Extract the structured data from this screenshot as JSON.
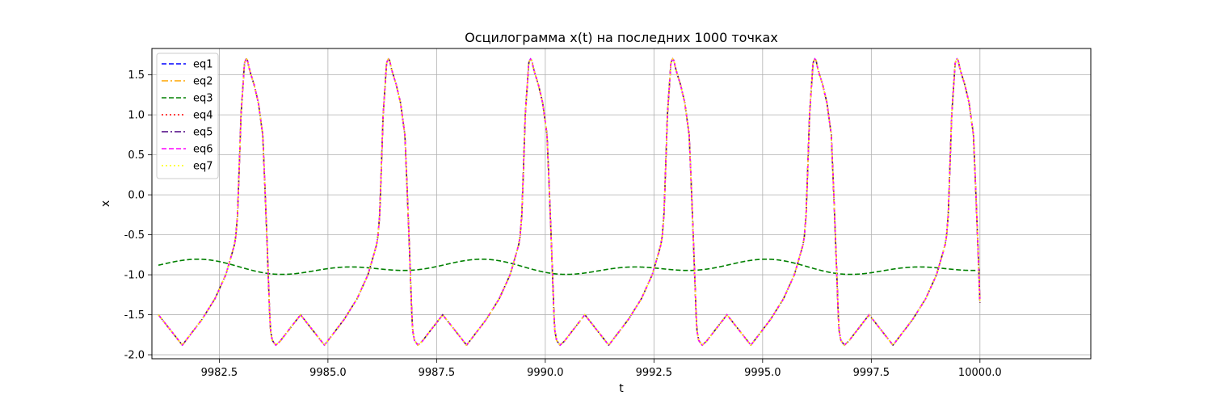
{
  "chart_data": {
    "type": "line",
    "title": "Осцилограмма x(t) на последних 1000 точках",
    "xlabel": "t",
    "ylabel": "x",
    "xlim": [
      9980.95,
      10002.55
    ],
    "ylim": [
      -2.05,
      1.83
    ],
    "grid": true,
    "legend_position": "top-left",
    "x_ticks": [
      9982.5,
      9985.0,
      9987.5,
      9990.0,
      9992.5,
      9995.0,
      9997.5,
      10000.0
    ],
    "y_ticks": [
      -2.0,
      -1.5,
      -1.0,
      -0.5,
      0.0,
      0.5,
      1.0,
      1.5
    ],
    "relaxation_waveform": {
      "t_start": 9981.1,
      "t_end": 10000.0,
      "period": 3.27,
      "phase": [
        0.55,
        1.0,
        1.3,
        1.55,
        1.7,
        1.75,
        1.78,
        1.82,
        1.85,
        1.9,
        1.98,
        2.02,
        2.05,
        2.08,
        2.12,
        2.2,
        2.3,
        2.4,
        2.45,
        2.5,
        2.56,
        2.58,
        2.62,
        2.7,
        2.8,
        3.27,
        3.82
      ],
      "x": [
        -1.88,
        -1.56,
        -1.3,
        -1.0,
        -0.72,
        -0.62,
        -0.52,
        -0.25,
        0.2,
        1.0,
        1.65,
        1.7,
        1.68,
        1.6,
        1.52,
        1.38,
        1.15,
        0.75,
        0.1,
        -0.6,
        -1.5,
        -1.7,
        -1.82,
        -1.88,
        -1.83,
        -1.5,
        -1.88
      ]
    },
    "slow_waveform": {
      "t_start": 9981.1,
      "t_end": 10000.0,
      "mean": -0.91,
      "amplitude_1": 0.055,
      "period_1": 6.54,
      "phase_ref_1": 9981.6,
      "amplitude_2": 0.055,
      "period_2": 3.27,
      "phase_ref_2": 9982.1
    },
    "series": [
      {
        "name": "eq1",
        "color": "#0000ff",
        "dash": "dashed",
        "waveform": "relaxation"
      },
      {
        "name": "eq2",
        "color": "#ffa500",
        "dash": "dashdot",
        "waveform": "relaxation"
      },
      {
        "name": "eq3",
        "color": "#008000",
        "dash": "dashed",
        "waveform": "slow"
      },
      {
        "name": "eq4",
        "color": "#ff0000",
        "dash": "dotted",
        "waveform": "relaxation"
      },
      {
        "name": "eq5",
        "color": "#4b0082",
        "dash": "dashdot",
        "waveform": "relaxation"
      },
      {
        "name": "eq6",
        "color": "#ff00ff",
        "dash": "dashed",
        "waveform": "relaxation"
      },
      {
        "name": "eq7",
        "color": "#ffff00",
        "dash": "dotted",
        "waveform": "relaxation"
      }
    ]
  }
}
